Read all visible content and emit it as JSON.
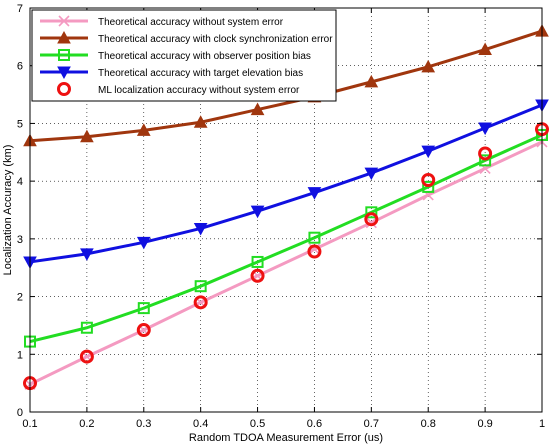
{
  "chart_data": {
    "type": "line",
    "title": "",
    "xlabel": "Random TDOA Measurement Error (us)",
    "ylabel": "Localization Accuracy (km)",
    "xlim": [
      0.1,
      1.0
    ],
    "ylim": [
      0,
      7
    ],
    "xticks": [
      "0.1",
      "0.2",
      "0.3",
      "0.4",
      "0.5",
      "0.6",
      "0.7",
      "0.8",
      "0.9",
      "1"
    ],
    "yticks": [
      "0",
      "1",
      "2",
      "3",
      "4",
      "5",
      "6",
      "7"
    ],
    "grid": true,
    "legend_position": "top-left",
    "x": [
      0.1,
      0.2,
      0.3,
      0.4,
      0.5,
      0.6,
      0.7,
      0.8,
      0.9,
      1.0
    ],
    "series": [
      {
        "name": "Theoretical accuracy without system error",
        "color": "#f49ac1",
        "marker": "x",
        "line": true,
        "values": [
          0.48,
          0.96,
          1.42,
          1.9,
          2.36,
          2.82,
          3.28,
          3.76,
          4.22,
          4.68
        ]
      },
      {
        "name": "Theoretical accuracy with clock synchronization error",
        "color": "#a0360e",
        "marker": "triangle-up",
        "line": true,
        "values": [
          4.7,
          4.77,
          4.88,
          5.02,
          5.24,
          5.46,
          5.72,
          5.98,
          6.28,
          6.6
        ]
      },
      {
        "name": "Theoretical accuracy with observer position bias",
        "color": "#22dd22",
        "marker": "square",
        "line": true,
        "values": [
          1.22,
          1.46,
          1.8,
          2.18,
          2.6,
          3.02,
          3.46,
          3.9,
          4.36,
          4.8
        ]
      },
      {
        "name": "Theoretical accuracy with target elevation bias",
        "color": "#1010e0",
        "marker": "triangle-down",
        "line": true,
        "values": [
          2.6,
          2.74,
          2.94,
          3.18,
          3.48,
          3.8,
          4.14,
          4.52,
          4.92,
          5.32
        ]
      },
      {
        "name": "ML localization accuracy without system error",
        "color": "#ee1111",
        "marker": "circle",
        "line": false,
        "values": [
          0.5,
          0.96,
          1.42,
          1.9,
          2.36,
          2.78,
          3.34,
          4.02,
          4.48,
          4.9
        ]
      }
    ]
  }
}
